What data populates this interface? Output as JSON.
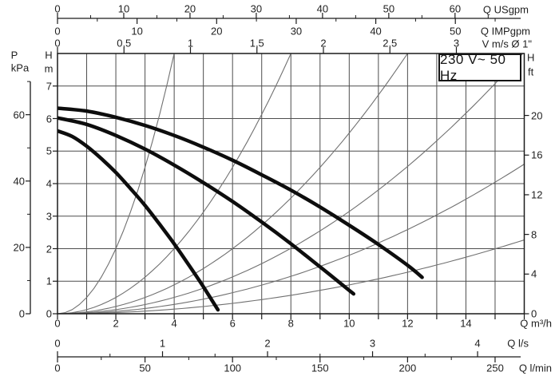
{
  "badge": {
    "text": "230 V~ 50 Hz"
  },
  "axes": {
    "usgpm": {
      "label": "Q USgpm",
      "ticks": [
        0,
        10,
        20,
        30,
        40,
        50,
        60
      ]
    },
    "impgpm": {
      "label": "Q IMPgpm",
      "ticks": [
        0,
        10,
        20,
        30,
        40,
        50
      ]
    },
    "velocity": {
      "label": "V m/s Ø 1\"",
      "ticks": [
        "0",
        "0,5",
        "1",
        "1,5",
        "2",
        "2,5",
        "3"
      ]
    },
    "pressure": {
      "sym": "P",
      "unit": "kPa",
      "ticks": [
        0,
        20,
        40,
        60
      ]
    },
    "head_m": {
      "sym": "H",
      "unit": "m",
      "ticks": [
        0,
        1,
        2,
        3,
        4,
        5,
        6,
        7
      ]
    },
    "head_ft": {
      "sym": "H",
      "unit": "ft",
      "ticks": [
        0,
        4,
        8,
        12,
        16,
        20
      ]
    },
    "flow_m3h": {
      "label": "Q m³/h",
      "ticks": [
        0,
        2,
        4,
        6,
        8,
        10,
        12,
        14
      ]
    },
    "flow_ls": {
      "label": "Q l/s",
      "ticks": [
        0,
        1,
        2,
        3,
        4
      ]
    },
    "flow_lmin": {
      "label": "Q l/min",
      "ticks": [
        0,
        50,
        100,
        150,
        200,
        250
      ]
    }
  },
  "chart_data": {
    "type": "line",
    "title": "230 V~ 50 Hz",
    "xlabel": "Q m³/h",
    "ylabel": "H m",
    "xlim": [
      0,
      16
    ],
    "ylim": [
      0,
      8
    ],
    "grid": "on, 1 m³/h x 1 m",
    "equivalent_x_scales": [
      "Q USgpm 0-60",
      "Q IMPgpm 0-50",
      "V m/s Ø 1\" 0-3",
      "Q l/s 0-4",
      "Q l/min 0-250"
    ],
    "equivalent_y_scales": [
      "P kPa 0-60",
      "H ft 0-20"
    ],
    "series": [
      {
        "name": "pump-curve-high-speed",
        "points": [
          [
            0,
            6.32
          ],
          [
            1,
            6.23
          ],
          [
            2,
            6.04
          ],
          [
            3,
            5.79
          ],
          [
            4,
            5.48
          ],
          [
            5,
            5.12
          ],
          [
            6,
            4.72
          ],
          [
            7,
            4.27
          ],
          [
            8,
            3.8
          ],
          [
            9,
            3.28
          ],
          [
            10,
            2.72
          ],
          [
            11,
            2.13
          ],
          [
            12,
            1.49
          ],
          [
            12.5,
            1.12
          ]
        ]
      },
      {
        "name": "pump-curve-mid-speed",
        "points": [
          [
            0,
            6.02
          ],
          [
            1,
            5.82
          ],
          [
            2,
            5.48
          ],
          [
            3,
            5.06
          ],
          [
            4,
            4.57
          ],
          [
            5,
            4.03
          ],
          [
            6,
            3.45
          ],
          [
            7,
            2.82
          ],
          [
            8,
            2.15
          ],
          [
            9,
            1.44
          ],
          [
            10,
            0.72
          ],
          [
            10.15,
            0.61
          ]
        ]
      },
      {
        "name": "pump-curve-low-speed",
        "points": [
          [
            0,
            5.62
          ],
          [
            0.5,
            5.45
          ],
          [
            1,
            5.15
          ],
          [
            1.5,
            4.77
          ],
          [
            2,
            4.34
          ],
          [
            2.5,
            3.85
          ],
          [
            3,
            3.33
          ],
          [
            3.5,
            2.75
          ],
          [
            4,
            2.15
          ],
          [
            4.5,
            1.5
          ],
          [
            5,
            0.83
          ],
          [
            5.5,
            0.12
          ]
        ]
      }
    ],
    "reference_curves": [
      {
        "name": "system-parabola-1",
        "exit_q": 4.0,
        "exit_h": 8.0
      },
      {
        "name": "system-parabola-2",
        "exit_q": 8.0,
        "exit_h": 8.0
      },
      {
        "name": "system-parabola-3",
        "exit_q": 12.0,
        "exit_h": 8.0
      },
      {
        "name": "system-parabola-4",
        "exit_q": 15.95,
        "exit_h": 8.0
      },
      {
        "name": "system-parabola-5",
        "exit_q": 16.0,
        "exit_h": 4.6
      },
      {
        "name": "system-parabola-6",
        "exit_q": 16.0,
        "exit_h": 2.27
      }
    ],
    "annotation": "230 V~ 50 Hz",
    "legend": "none"
  },
  "colors": {
    "curve": "#0d0d0d",
    "grid": "#4d4d4d",
    "reference": "#707070",
    "axis": "#1a1a1a"
  }
}
